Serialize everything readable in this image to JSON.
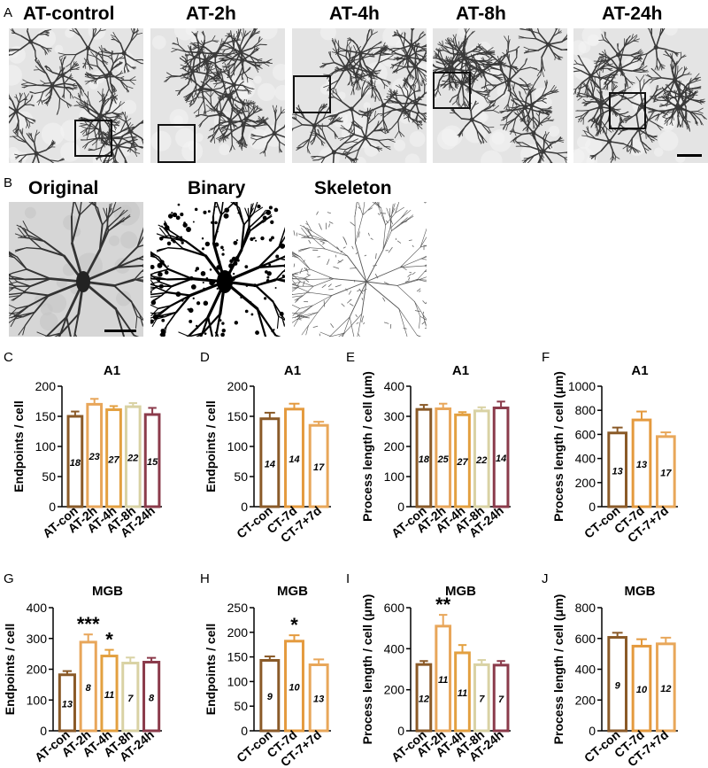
{
  "panel_a": {
    "label": "A",
    "titles": [
      "AT-control",
      "AT-2h",
      "AT-4h",
      "AT-8h",
      "AT-24h"
    ]
  },
  "panel_b": {
    "label": "B",
    "titles": [
      "Original",
      "Binary",
      "Skeleton"
    ]
  },
  "colors": {
    "con": "#8a5a28",
    "h2": "#e8a65a",
    "h4": "#e3a040",
    "h8": "#d9d2a4",
    "h24": "#8b3b4b",
    "ct7": "#e49a3e",
    "ct77": "#e8a75a"
  },
  "chart_data": [
    {
      "panel": "C",
      "type": "bar",
      "title": "A1",
      "ylabel": "Endpoints / cell",
      "ylim": [
        0,
        200
      ],
      "yticks": [
        0,
        50,
        100,
        150,
        200
      ],
      "categories": [
        "AT-con",
        "AT-2h",
        "AT-4h",
        "AT-8h",
        "AT-24h"
      ],
      "values": [
        150,
        170,
        161,
        166,
        153
      ],
      "errors": [
        8,
        9,
        6,
        6,
        11
      ],
      "n": [
        "18",
        "23",
        "27",
        "22",
        "15"
      ],
      "colors": [
        "#8a5a28",
        "#e8a65a",
        "#e3a040",
        "#d9d2a4",
        "#8b3b4b"
      ],
      "sig": [
        "",
        "",
        "",
        "",
        ""
      ]
    },
    {
      "panel": "D",
      "type": "bar",
      "title": "A1",
      "ylabel": "Endpoints / cell",
      "ylim": [
        0,
        200
      ],
      "yticks": [
        0,
        50,
        100,
        150,
        200
      ],
      "categories": [
        "CT-con",
        "CT-7d",
        "CT-7+7d"
      ],
      "values": [
        146,
        162,
        135
      ],
      "errors": [
        10,
        9,
        6
      ],
      "n": [
        "14",
        "14",
        "17"
      ],
      "colors": [
        "#8a5a28",
        "#e49a3e",
        "#e8a75a"
      ],
      "sig": [
        "",
        "",
        ""
      ]
    },
    {
      "panel": "E",
      "type": "bar",
      "title": "A1",
      "ylabel": "Process length / cell (μm)",
      "ylim": [
        0,
        400
      ],
      "yticks": [
        0,
        100,
        200,
        300,
        400
      ],
      "categories": [
        "AT-con",
        "AT-2h",
        "AT-4h",
        "AT-8h",
        "AT-24h"
      ],
      "values": [
        323,
        325,
        305,
        318,
        328
      ],
      "errors": [
        15,
        17,
        9,
        12,
        21
      ],
      "n": [
        "18",
        "25",
        "27",
        "22",
        "14"
      ],
      "colors": [
        "#8a5a28",
        "#e8a65a",
        "#e3a040",
        "#d9d2a4",
        "#8b3b4b"
      ],
      "sig": [
        "",
        "",
        "",
        "",
        ""
      ]
    },
    {
      "panel": "F",
      "type": "bar",
      "title": "A1",
      "ylabel": "Process length / cell (μm)",
      "ylim": [
        0,
        1000
      ],
      "yticks": [
        0,
        200,
        400,
        600,
        800,
        1000
      ],
      "categories": [
        "CT-con",
        "CT-7d",
        "CT-7+7d"
      ],
      "values": [
        612,
        720,
        582
      ],
      "errors": [
        45,
        70,
        35
      ],
      "n": [
        "13",
        "13",
        "17"
      ],
      "colors": [
        "#8a5a28",
        "#e49a3e",
        "#e8a75a"
      ],
      "sig": [
        "",
        "",
        ""
      ]
    },
    {
      "panel": "G",
      "type": "bar",
      "title": "MGB",
      "ylabel": "Endpoints / cell",
      "ylim": [
        0,
        400
      ],
      "yticks": [
        0,
        100,
        200,
        300,
        400
      ],
      "categories": [
        "AT-con",
        "AT-2h",
        "AT-4h",
        "AT-8h",
        "AT-24h"
      ],
      "values": [
        182,
        288,
        243,
        220,
        223
      ],
      "errors": [
        12,
        25,
        20,
        18,
        14
      ],
      "n": [
        "13",
        "8",
        "11",
        "7",
        "8"
      ],
      "colors": [
        "#8a5a28",
        "#e8a65a",
        "#e3a040",
        "#d9d2a4",
        "#8b3b4b"
      ],
      "sig": [
        "",
        "***",
        "*",
        "",
        ""
      ]
    },
    {
      "panel": "H",
      "type": "bar",
      "title": "MGB",
      "ylabel": "Endpoints / cell",
      "ylim": [
        0,
        250
      ],
      "yticks": [
        0,
        50,
        100,
        150,
        200,
        250
      ],
      "categories": [
        "CT-con",
        "CT-7d",
        "CT-7+7d"
      ],
      "values": [
        143,
        182,
        134
      ],
      "errors": [
        8,
        12,
        11
      ],
      "n": [
        "9",
        "10",
        "13"
      ],
      "colors": [
        "#8a5a28",
        "#e49a3e",
        "#e8a75a"
      ],
      "sig": [
        "",
        "*",
        ""
      ]
    },
    {
      "panel": "I",
      "type": "bar",
      "title": "MGB",
      "ylabel": "Process length / cell (μm)",
      "ylim": [
        0,
        600
      ],
      "yticks": [
        0,
        200,
        400,
        600
      ],
      "categories": [
        "AT-con",
        "AT-2h",
        "AT-4h",
        "AT-8h",
        "AT-24h"
      ],
      "values": [
        323,
        510,
        380,
        322,
        320
      ],
      "errors": [
        17,
        55,
        38,
        23,
        20
      ],
      "n": [
        "12",
        "11",
        "11",
        "7",
        "7"
      ],
      "colors": [
        "#8a5a28",
        "#e8a65a",
        "#e3a040",
        "#d9d2a4",
        "#8b3b4b"
      ],
      "sig": [
        "",
        "**",
        "",
        "",
        ""
      ]
    },
    {
      "panel": "J",
      "type": "bar",
      "title": "MGB",
      "ylabel": "Process length / cell (μm)",
      "ylim": [
        0,
        800
      ],
      "yticks": [
        0,
        200,
        400,
        600,
        800
      ],
      "categories": [
        "CT-con",
        "CT-7d",
        "CT-7+7d"
      ],
      "values": [
        607,
        550,
        565
      ],
      "errors": [
        30,
        45,
        40
      ],
      "n": [
        "9",
        "10",
        "12"
      ],
      "colors": [
        "#8a5a28",
        "#e49a3e",
        "#e8a75a"
      ],
      "sig": [
        "",
        "",
        ""
      ]
    }
  ]
}
